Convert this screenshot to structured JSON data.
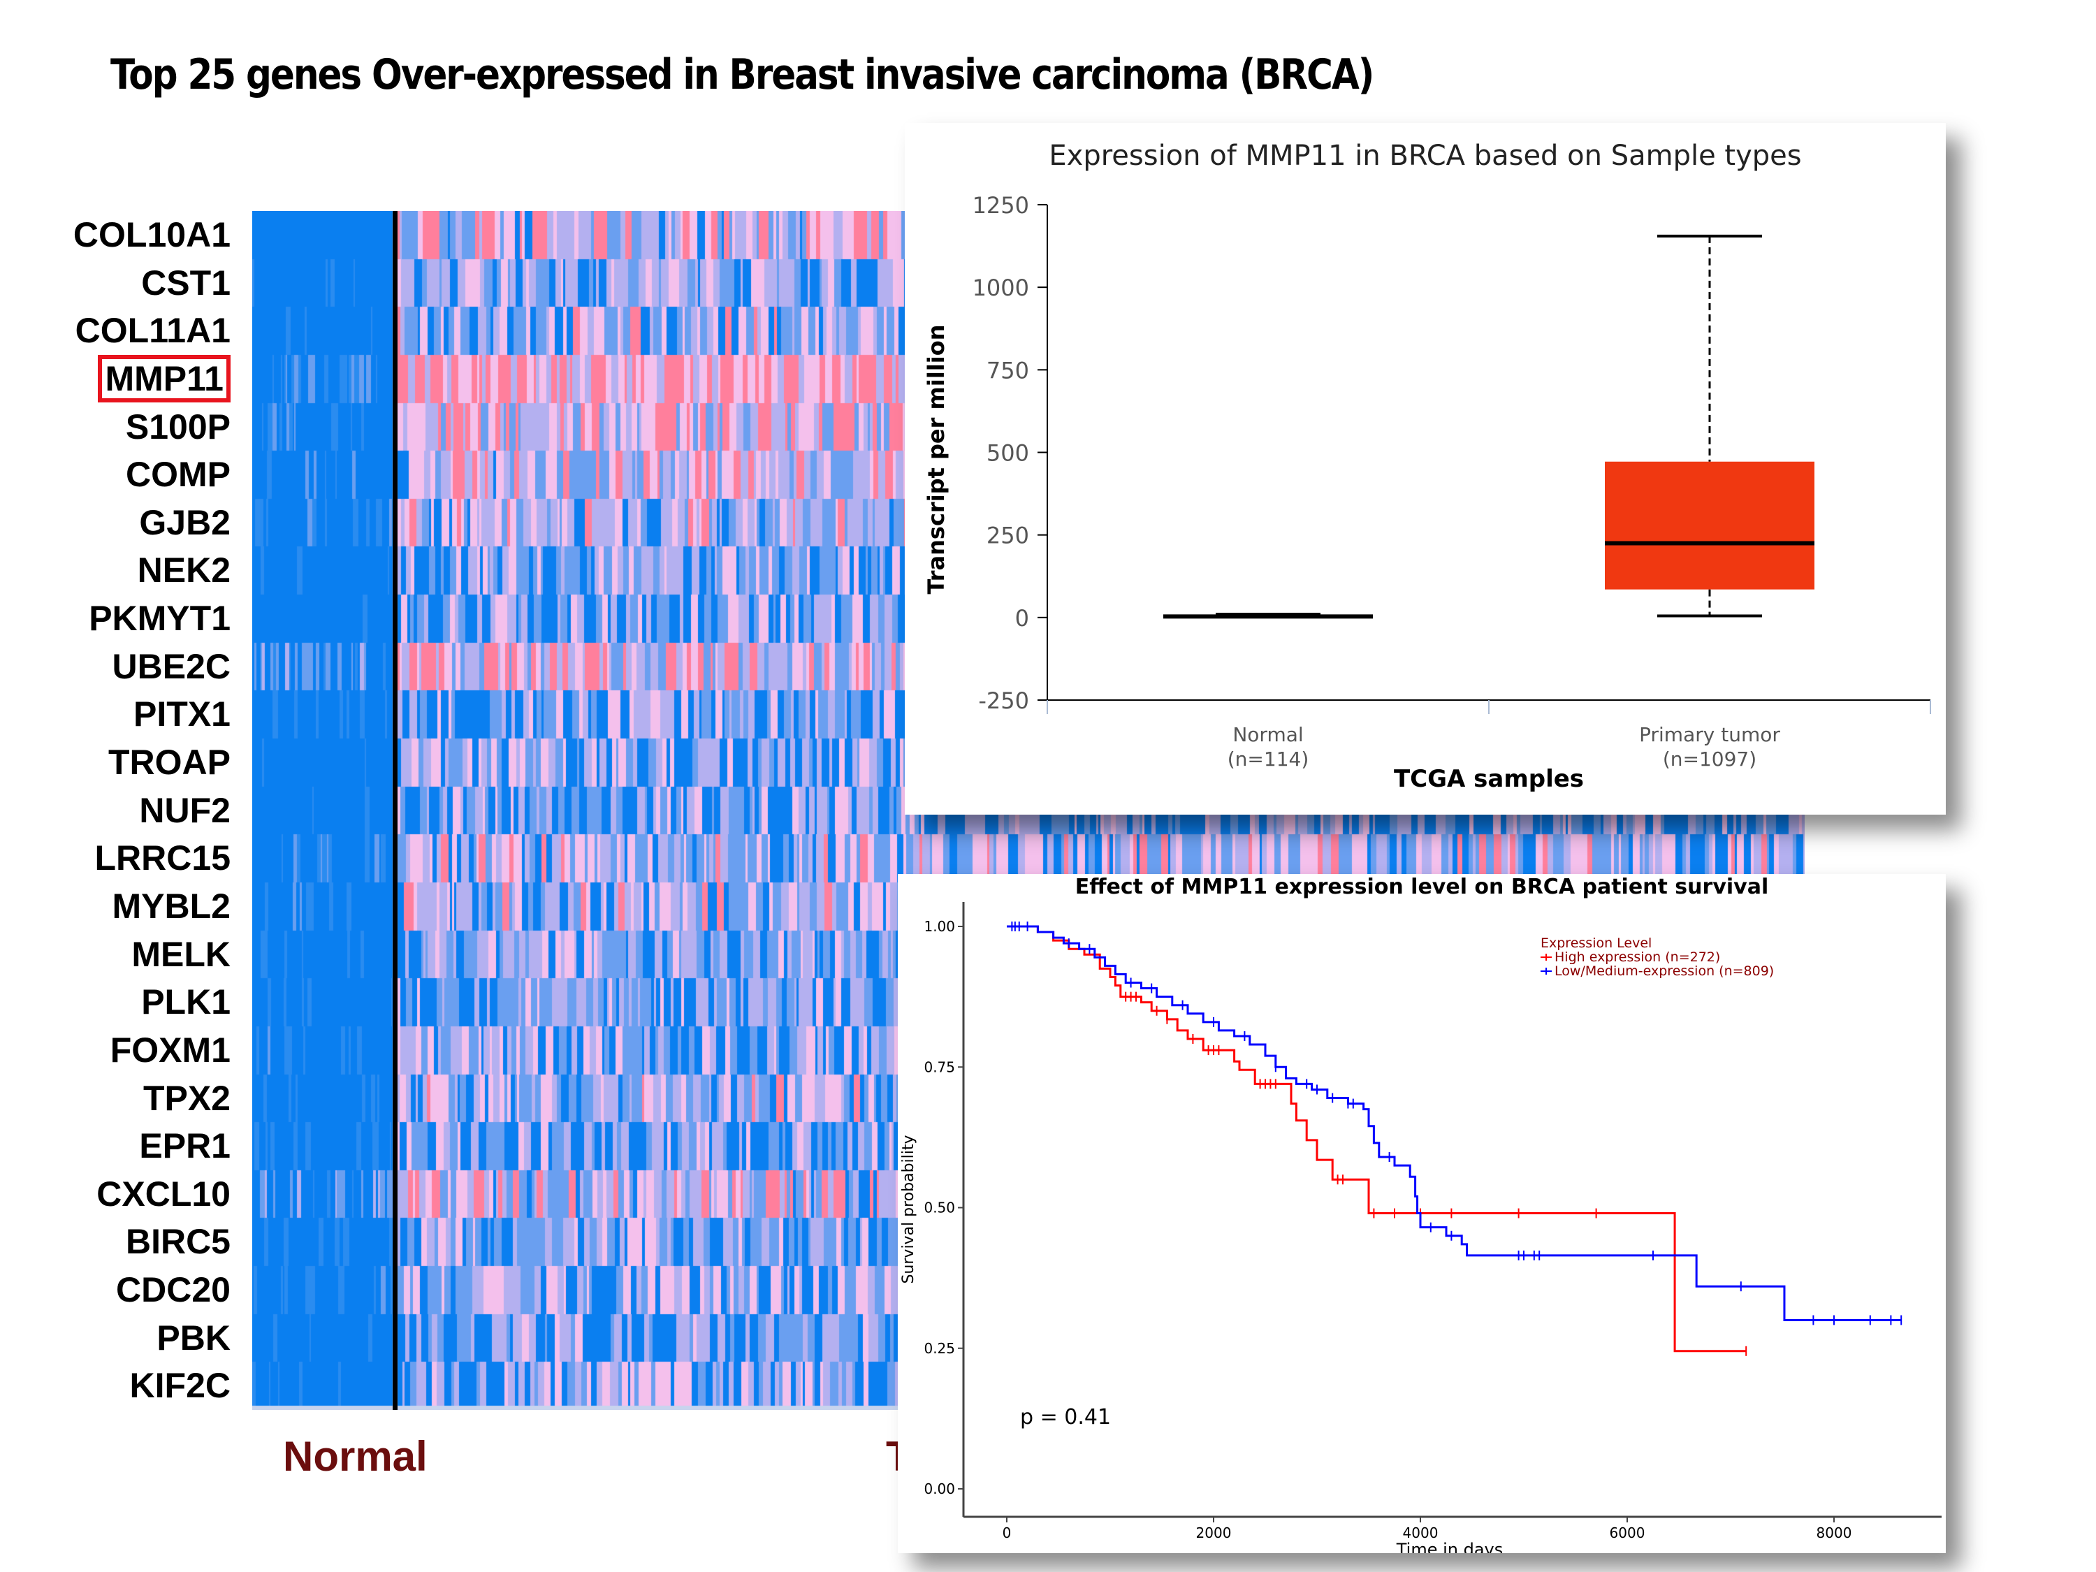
{
  "main_title": "Top 25 genes Over-expressed in Breast invasive carcinoma (BRCA)",
  "heatmap": {
    "genes": [
      "COL10A1",
      "CST1",
      "COL11A1",
      "MMP11",
      "S100P",
      "COMP",
      "GJB2",
      "NEK2",
      "PKMYT1",
      "UBE2C",
      "PITX1",
      "TROAP",
      "NUF2",
      "LRRC15",
      "MYBL2",
      "MELK",
      "PLK1",
      "FOXM1",
      "TPX2",
      "EPR1",
      "CXCL10",
      "BIRC5",
      "CDC20",
      "PBK",
      "KIF2C"
    ],
    "highlighted_gene": "MMP11",
    "group_labels": {
      "normal": "Normal",
      "tumor": "T"
    },
    "colors": {
      "low": "#0a7ff0",
      "mid_low": "#6a9ff0",
      "mid": "#b4b0f0",
      "mid_high": "#f4c0ec",
      "high": "#ff7f9c",
      "divider": "#000000",
      "label": "#6b0e0e",
      "highlight_box": "#e8141e"
    }
  },
  "chart_data": [
    {
      "type": "box",
      "title": "Expression of MMP11 in BRCA based on Sample types",
      "xlabel": "TCGA samples",
      "ylabel": "Transcript per million",
      "ylim": [
        -250,
        1250
      ],
      "yticks": [
        -250,
        0,
        250,
        500,
        750,
        1000,
        1250
      ],
      "categories": [
        {
          "name": "Normal",
          "n_label": "(n=114)",
          "min": 0,
          "q1": 1,
          "median": 3,
          "q3": 10,
          "max": 10,
          "color": "#000000"
        },
        {
          "name": "Primary tumor",
          "n_label": "(n=1097)",
          "min": 5,
          "q1": 85,
          "median": 225,
          "q3": 472,
          "max": 1155,
          "color": "#f03811"
        }
      ]
    },
    {
      "type": "line",
      "subtype": "kaplan-meier",
      "title": "Effect of MMP11 expression level on BRCA patient survival",
      "xlabel": "Time in days",
      "ylabel": "Survival probability",
      "xlim": [
        -400,
        9050
      ],
      "ylim": [
        -0.05,
        1.05
      ],
      "xticks": [
        0,
        2000,
        4000,
        6000,
        8000
      ],
      "yticks": [
        "0.00",
        "0.25",
        "0.50",
        "0.75",
        "1.00"
      ],
      "legend": {
        "title": "Expression Level",
        "position": "top-right"
      },
      "annotation": "p = 0.41",
      "series": [
        {
          "name": "High expression (n=272)",
          "color": "#ff0000",
          "steps": [
            [
              0,
              1.0
            ],
            [
              150,
              1.0
            ],
            [
              300,
              0.99
            ],
            [
              450,
              0.975
            ],
            [
              600,
              0.96
            ],
            [
              750,
              0.95
            ],
            [
              900,
              0.925
            ],
            [
              1000,
              0.91
            ],
            [
              1050,
              0.895
            ],
            [
              1100,
              0.875
            ],
            [
              1300,
              0.865
            ],
            [
              1400,
              0.85
            ],
            [
              1550,
              0.835
            ],
            [
              1650,
              0.815
            ],
            [
              1750,
              0.8
            ],
            [
              1900,
              0.78
            ],
            [
              2200,
              0.76
            ],
            [
              2250,
              0.745
            ],
            [
              2400,
              0.72
            ],
            [
              2700,
              0.72
            ],
            [
              2750,
              0.685
            ],
            [
              2800,
              0.655
            ],
            [
              2900,
              0.62
            ],
            [
              3000,
              0.585
            ],
            [
              3150,
              0.55
            ],
            [
              3450,
              0.55
            ],
            [
              3500,
              0.49
            ],
            [
              6450,
              0.49
            ],
            [
              6460,
              0.245
            ],
            [
              7150,
              0.245
            ]
          ],
          "censors": [
            1150,
            1200,
            1250,
            1450,
            1550,
            1800,
            1950,
            2000,
            2050,
            2450,
            2500,
            2550,
            2600,
            3200,
            3250,
            3550,
            3750,
            4000,
            4300,
            4950,
            5700,
            7150
          ]
        },
        {
          "name": "Low/Medium-expression (n=809)",
          "color": "#0000ff",
          "steps": [
            [
              0,
              1.0
            ],
            [
              100,
              1.0
            ],
            [
              300,
              0.99
            ],
            [
              450,
              0.98
            ],
            [
              550,
              0.97
            ],
            [
              700,
              0.96
            ],
            [
              850,
              0.945
            ],
            [
              950,
              0.93
            ],
            [
              1050,
              0.915
            ],
            [
              1150,
              0.9
            ],
            [
              1300,
              0.89
            ],
            [
              1450,
              0.875
            ],
            [
              1600,
              0.86
            ],
            [
              1750,
              0.845
            ],
            [
              1900,
              0.83
            ],
            [
              2050,
              0.815
            ],
            [
              2200,
              0.805
            ],
            [
              2350,
              0.79
            ],
            [
              2500,
              0.77
            ],
            [
              2600,
              0.75
            ],
            [
              2700,
              0.73
            ],
            [
              2800,
              0.72
            ],
            [
              2950,
              0.71
            ],
            [
              3100,
              0.695
            ],
            [
              3300,
              0.685
            ],
            [
              3450,
              0.675
            ],
            [
              3500,
              0.645
            ],
            [
              3550,
              0.615
            ],
            [
              3600,
              0.59
            ],
            [
              3750,
              0.575
            ],
            [
              3900,
              0.555
            ],
            [
              3950,
              0.52
            ],
            [
              3970,
              0.49
            ],
            [
              4000,
              0.465
            ],
            [
              4250,
              0.45
            ],
            [
              4400,
              0.435
            ],
            [
              4450,
              0.415
            ],
            [
              6650,
              0.415
            ],
            [
              6670,
              0.36
            ],
            [
              7500,
              0.36
            ],
            [
              7520,
              0.3
            ],
            [
              8650,
              0.3
            ]
          ],
          "censors": [
            50,
            80,
            120,
            200,
            600,
            800,
            1200,
            1400,
            1700,
            2000,
            2300,
            2600,
            2900,
            3000,
            3150,
            3300,
            3350,
            3700,
            4100,
            4300,
            4950,
            5000,
            5100,
            5150,
            6250,
            7100,
            7800,
            8000,
            8350,
            8550,
            8650
          ]
        }
      ]
    }
  ]
}
